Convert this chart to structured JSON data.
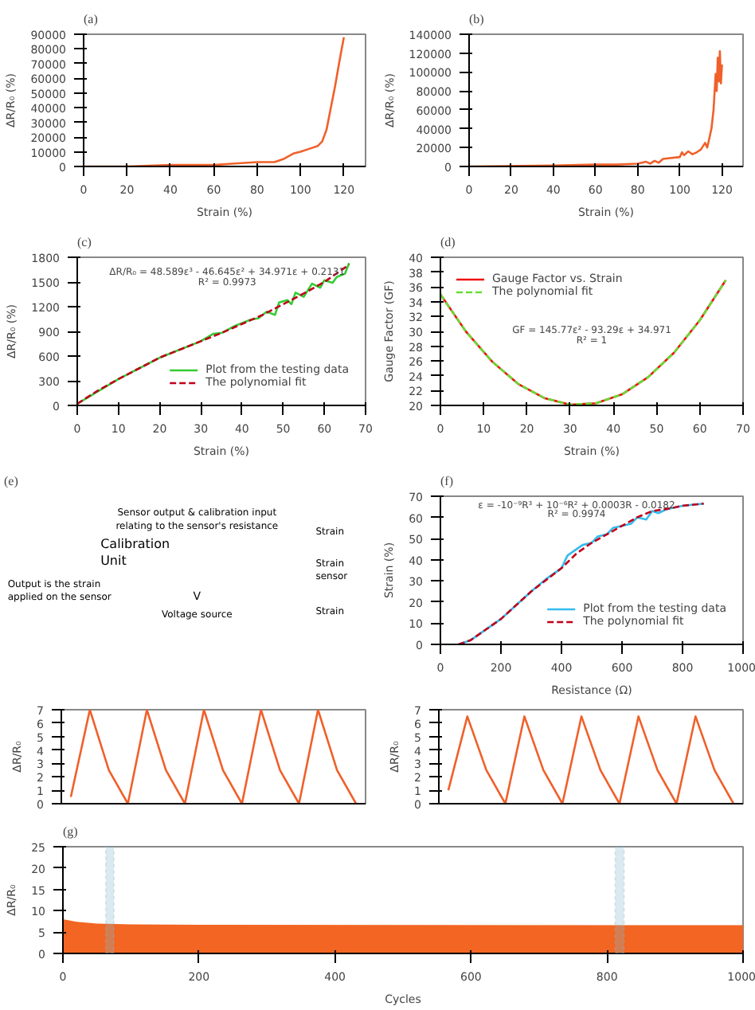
{
  "chart_data": [
    {
      "type": "line",
      "title": "(a)",
      "xlabel": "Strain (%)",
      "ylabel": "ΔR/R₀ (%)",
      "xlim": [
        0,
        130
      ],
      "xticks": [
        0,
        20,
        40,
        60,
        80,
        100,
        120
      ],
      "ylim": [
        0,
        90000
      ],
      "yticks": [
        0,
        10000,
        20000,
        30000,
        40000,
        50000,
        60000,
        70000,
        80000,
        90000
      ],
      "grid": false,
      "legend": false,
      "series": [
        {
          "color": "#f0602a",
          "x": [
            0,
            20,
            40,
            60,
            70,
            80,
            88,
            92,
            97,
            100,
            104,
            108,
            110,
            112,
            114,
            116,
            118,
            120
          ],
          "values": [
            0,
            0,
            1000,
            1000,
            2000,
            3000,
            3000,
            5000,
            9000,
            10000,
            12000,
            14000,
            17000,
            25000,
            40000,
            55000,
            72000,
            88000
          ]
        }
      ]
    },
    {
      "type": "line",
      "title": "(b)",
      "xlabel": "Strain (%)",
      "ylabel": "ΔR/R₀ (%)",
      "xlim": [
        0,
        130
      ],
      "xticks": [
        0,
        20,
        40,
        60,
        80,
        100,
        120
      ],
      "ylim": [
        0,
        140000
      ],
      "yticks": [
        0,
        20000,
        40000,
        60000,
        80000,
        100000,
        120000,
        140000
      ],
      "grid": false,
      "legend": false,
      "series": [
        {
          "color": "#f0602a",
          "x": [
            0,
            40,
            60,
            70,
            80,
            84,
            86,
            88,
            90,
            92,
            100,
            101,
            102,
            104,
            106,
            108,
            110,
            112,
            113,
            114,
            115,
            116,
            117,
            117.5,
            118,
            118.5,
            119,
            119.5,
            120
          ],
          "values": [
            0,
            1000,
            2000,
            2000,
            3000,
            5000,
            3000,
            6000,
            4000,
            8000,
            10000,
            15000,
            12000,
            16000,
            13000,
            15000,
            18000,
            25000,
            20000,
            30000,
            40000,
            60000,
            98000,
            80000,
            115000,
            90000,
            122000,
            88000,
            108000
          ]
        }
      ]
    },
    {
      "type": "line",
      "title": "(c)",
      "xlabel": "Strain (%)",
      "ylabel": "ΔR/R₀ (%)",
      "xlim": [
        0,
        70
      ],
      "xticks": [
        0,
        10,
        20,
        30,
        40,
        50,
        60,
        70
      ],
      "ylim": [
        0,
        1800
      ],
      "yticks": [
        0,
        300,
        600,
        900,
        1200,
        1500,
        1800
      ],
      "grid": false,
      "legend": "bottom right",
      "annotations": [
        "ΔR/R₀ = 48.589ε³ - 46.645ε² + 34.971ε + 0.2131",
        "R² = 0.9973"
      ],
      "series": [
        {
          "name": "Plot from the testing data",
          "color": "#33cc33",
          "x": [
            0,
            10,
            20,
            30,
            33,
            35,
            38,
            40,
            42,
            44,
            46,
            48,
            49,
            51,
            52,
            53,
            55,
            57,
            59,
            60,
            62,
            63,
            65,
            66
          ],
          "values": [
            20,
            320,
            580,
            780,
            870,
            880,
            960,
            1000,
            1040,
            1060,
            1140,
            1100,
            1250,
            1280,
            1230,
            1370,
            1320,
            1480,
            1430,
            1520,
            1490,
            1560,
            1600,
            1730
          ]
        },
        {
          "name": "The polynomial fit",
          "color": "#c0001a",
          "line_style": "dashed",
          "x": [
            0,
            5,
            10,
            15,
            20,
            25,
            30,
            35,
            40,
            45,
            50,
            55,
            60,
            66
          ],
          "values": [
            20,
            180,
            320,
            450,
            580,
            680,
            780,
            880,
            990,
            1100,
            1230,
            1360,
            1500,
            1710
          ]
        }
      ]
    },
    {
      "type": "line",
      "title": "(d)",
      "xlabel": "Strain (%)",
      "ylabel": "Gauge Factor (GF)",
      "xlim": [
        0,
        70
      ],
      "xticks": [
        0,
        10,
        20,
        30,
        40,
        50,
        60,
        70
      ],
      "ylim": [
        20,
        40
      ],
      "yticks": [
        20,
        22,
        24,
        26,
        28,
        30,
        32,
        34,
        36,
        38,
        40
      ],
      "grid": false,
      "legend": "top left",
      "annotations": [
        "GF = 145.77ε² - 93.29ε + 34.971",
        "R² = 1"
      ],
      "series": [
        {
          "name": "Gauge Factor vs. Strain",
          "color": "#ee1111",
          "x": [
            0,
            6,
            12,
            18,
            24,
            30,
            36,
            42,
            48,
            54,
            60,
            66
          ],
          "values": [
            35.0,
            29.9,
            25.9,
            22.9,
            21.0,
            20.1,
            20.3,
            21.5,
            23.8,
            27.1,
            31.5,
            36.9
          ]
        },
        {
          "name": "The polynomial fit",
          "color": "#66dd33",
          "line_style": "dashed",
          "x": [
            0,
            6,
            12,
            18,
            24,
            30,
            36,
            42,
            48,
            54,
            60,
            66
          ],
          "values": [
            35.0,
            29.9,
            25.9,
            22.9,
            21.0,
            20.1,
            20.3,
            21.5,
            23.8,
            27.1,
            31.5,
            36.9
          ]
        }
      ]
    },
    {
      "type": "other",
      "title": "(e)",
      "annotations": [
        "Sensor output & calibration input\nrelating to the sensor's resistance",
        "Calibration\nUnit",
        "Output is the strain\napplied on the sensor",
        "V",
        "Voltage source",
        "Strain",
        "Strain\nsensor",
        "Strain"
      ]
    },
    {
      "type": "line",
      "title": "(f)",
      "xlabel": "Resistance (Ω)",
      "ylabel": "Strain (%)",
      "xlim": [
        0,
        1000
      ],
      "xticks": [
        0,
        200,
        400,
        600,
        800,
        1000
      ],
      "ylim": [
        0,
        70
      ],
      "yticks": [
        0,
        10,
        20,
        30,
        40,
        50,
        60,
        70
      ],
      "grid": false,
      "legend": "bottom right",
      "annotations": [
        "ε = -10⁻⁹R³ + 10⁻⁶R² + 0.0003R - 0.0182",
        "R² = 0.9974"
      ],
      "series": [
        {
          "name": "Plot from the testing data",
          "color": "#33bbee",
          "x": [
            60,
            100,
            200,
            300,
            350,
            400,
            420,
            450,
            470,
            500,
            520,
            550,
            570,
            600,
            630,
            650,
            680,
            700,
            720,
            750,
            800,
            870
          ],
          "values": [
            0,
            2,
            12,
            25,
            31,
            36,
            42,
            45,
            47,
            48,
            51,
            52,
            55,
            56,
            57,
            60,
            59,
            63,
            62,
            64,
            65.5,
            66.5
          ]
        },
        {
          "name": "The polynomial fit",
          "color": "#c0001a",
          "line_style": "dashed",
          "x": [
            60,
            100,
            200,
            300,
            400,
            450,
            500,
            550,
            600,
            650,
            700,
            750,
            800,
            870
          ],
          "values": [
            0,
            2,
            12,
            25,
            36,
            43,
            48,
            52,
            56,
            60,
            63,
            64,
            65.5,
            66.5
          ]
        }
      ]
    },
    {
      "type": "line",
      "xlabel": null,
      "ylabel": "ΔR/R₀",
      "ylim": [
        0,
        7
      ],
      "yticks": [
        0,
        1,
        2,
        3,
        4,
        5,
        6,
        7
      ],
      "tick_labels": "y",
      "grid": false,
      "legend": false,
      "categories": [
        null,
        null,
        null,
        null,
        null,
        null,
        null,
        null,
        null,
        null,
        null,
        null,
        null,
        null,
        null,
        null
      ],
      "series": [
        {
          "color": "#f0602a",
          "values": [
            0.5,
            7,
            2.5,
            0,
            7,
            2.5,
            0,
            7,
            2.5,
            0,
            7,
            2.5,
            0,
            7,
            2.5,
            0
          ]
        }
      ]
    },
    {
      "type": "line",
      "ylabel": "ΔR/R₀",
      "ylim": [
        0,
        7
      ],
      "yticks": [
        0,
        1,
        2,
        3,
        4,
        5,
        6,
        7
      ],
      "tick_labels": "y",
      "grid": false,
      "legend": false,
      "categories": [
        null,
        null,
        null,
        null,
        null,
        null,
        null,
        null,
        null,
        null,
        null,
        null,
        null,
        null,
        null,
        null
      ],
      "series": [
        {
          "color": "#f0602a",
          "values": [
            1,
            6.5,
            2.5,
            0,
            6.5,
            2.5,
            0,
            6.5,
            2.5,
            0,
            6.5,
            2.5,
            0,
            6.5,
            2.5,
            0
          ]
        }
      ]
    },
    {
      "type": "area",
      "title": "(g)",
      "xlabel": "Cycles",
      "ylabel": "ΔR/R₀",
      "xlim": [
        0,
        1000
      ],
      "xticks": [
        0,
        200,
        400,
        600,
        800,
        1000
      ],
      "ylim": [
        0,
        25
      ],
      "yticks": [
        0,
        5,
        10,
        15,
        20,
        25
      ],
      "grid": false,
      "legend": false,
      "bands": [
        {
          "axis": "x",
          "from": 63,
          "to": 75,
          "color": "#88bbcc"
        },
        {
          "axis": "x",
          "from": 812,
          "to": 825,
          "color": "#88bbcc"
        }
      ],
      "series": [
        {
          "color": "#f26522",
          "x": [
            0,
            20,
            50,
            100,
            200,
            1000
          ],
          "values": [
            8,
            7.4,
            7,
            6.8,
            6.7,
            6.6
          ]
        }
      ]
    }
  ]
}
